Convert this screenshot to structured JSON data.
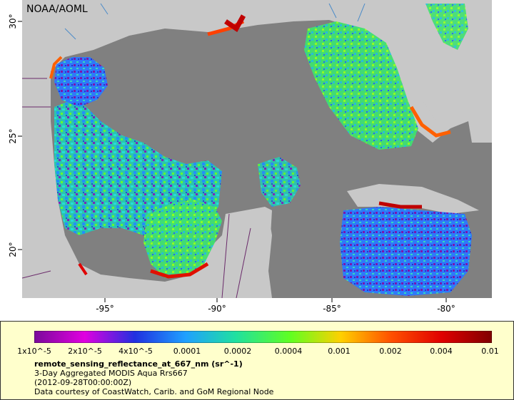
{
  "map": {
    "credit": "NOAA/AOML",
    "lon_ticks": [
      "-95°",
      "-90°",
      "-85°",
      "-80°"
    ],
    "lat_ticks": [
      "30°",
      "25°",
      "20°"
    ]
  },
  "legend": {
    "variable": "remote_sensing_reflectance_at_667_nm (sr^-1)",
    "product": "3-Day Aggregated MODIS Aqua Rrs667",
    "time": "(2012-09-28T00:00:00Z)",
    "source": "Data courtesy of CoastWatch, Carib. and GoM Regional Node",
    "tick_labels": [
      "1x10^-5",
      "2x10^-5",
      "4x10^-5",
      "0.0001",
      "0.0002",
      "0.0004",
      "0.001",
      "0.002",
      "0.004",
      "0.01"
    ],
    "colors": [
      "#7a0a9a",
      "#e000e0",
      "#2030e0",
      "#20a0ff",
      "#20e0a0",
      "#60ff20",
      "#ffd000",
      "#ff5000",
      "#e00000",
      "#800000"
    ]
  }
}
